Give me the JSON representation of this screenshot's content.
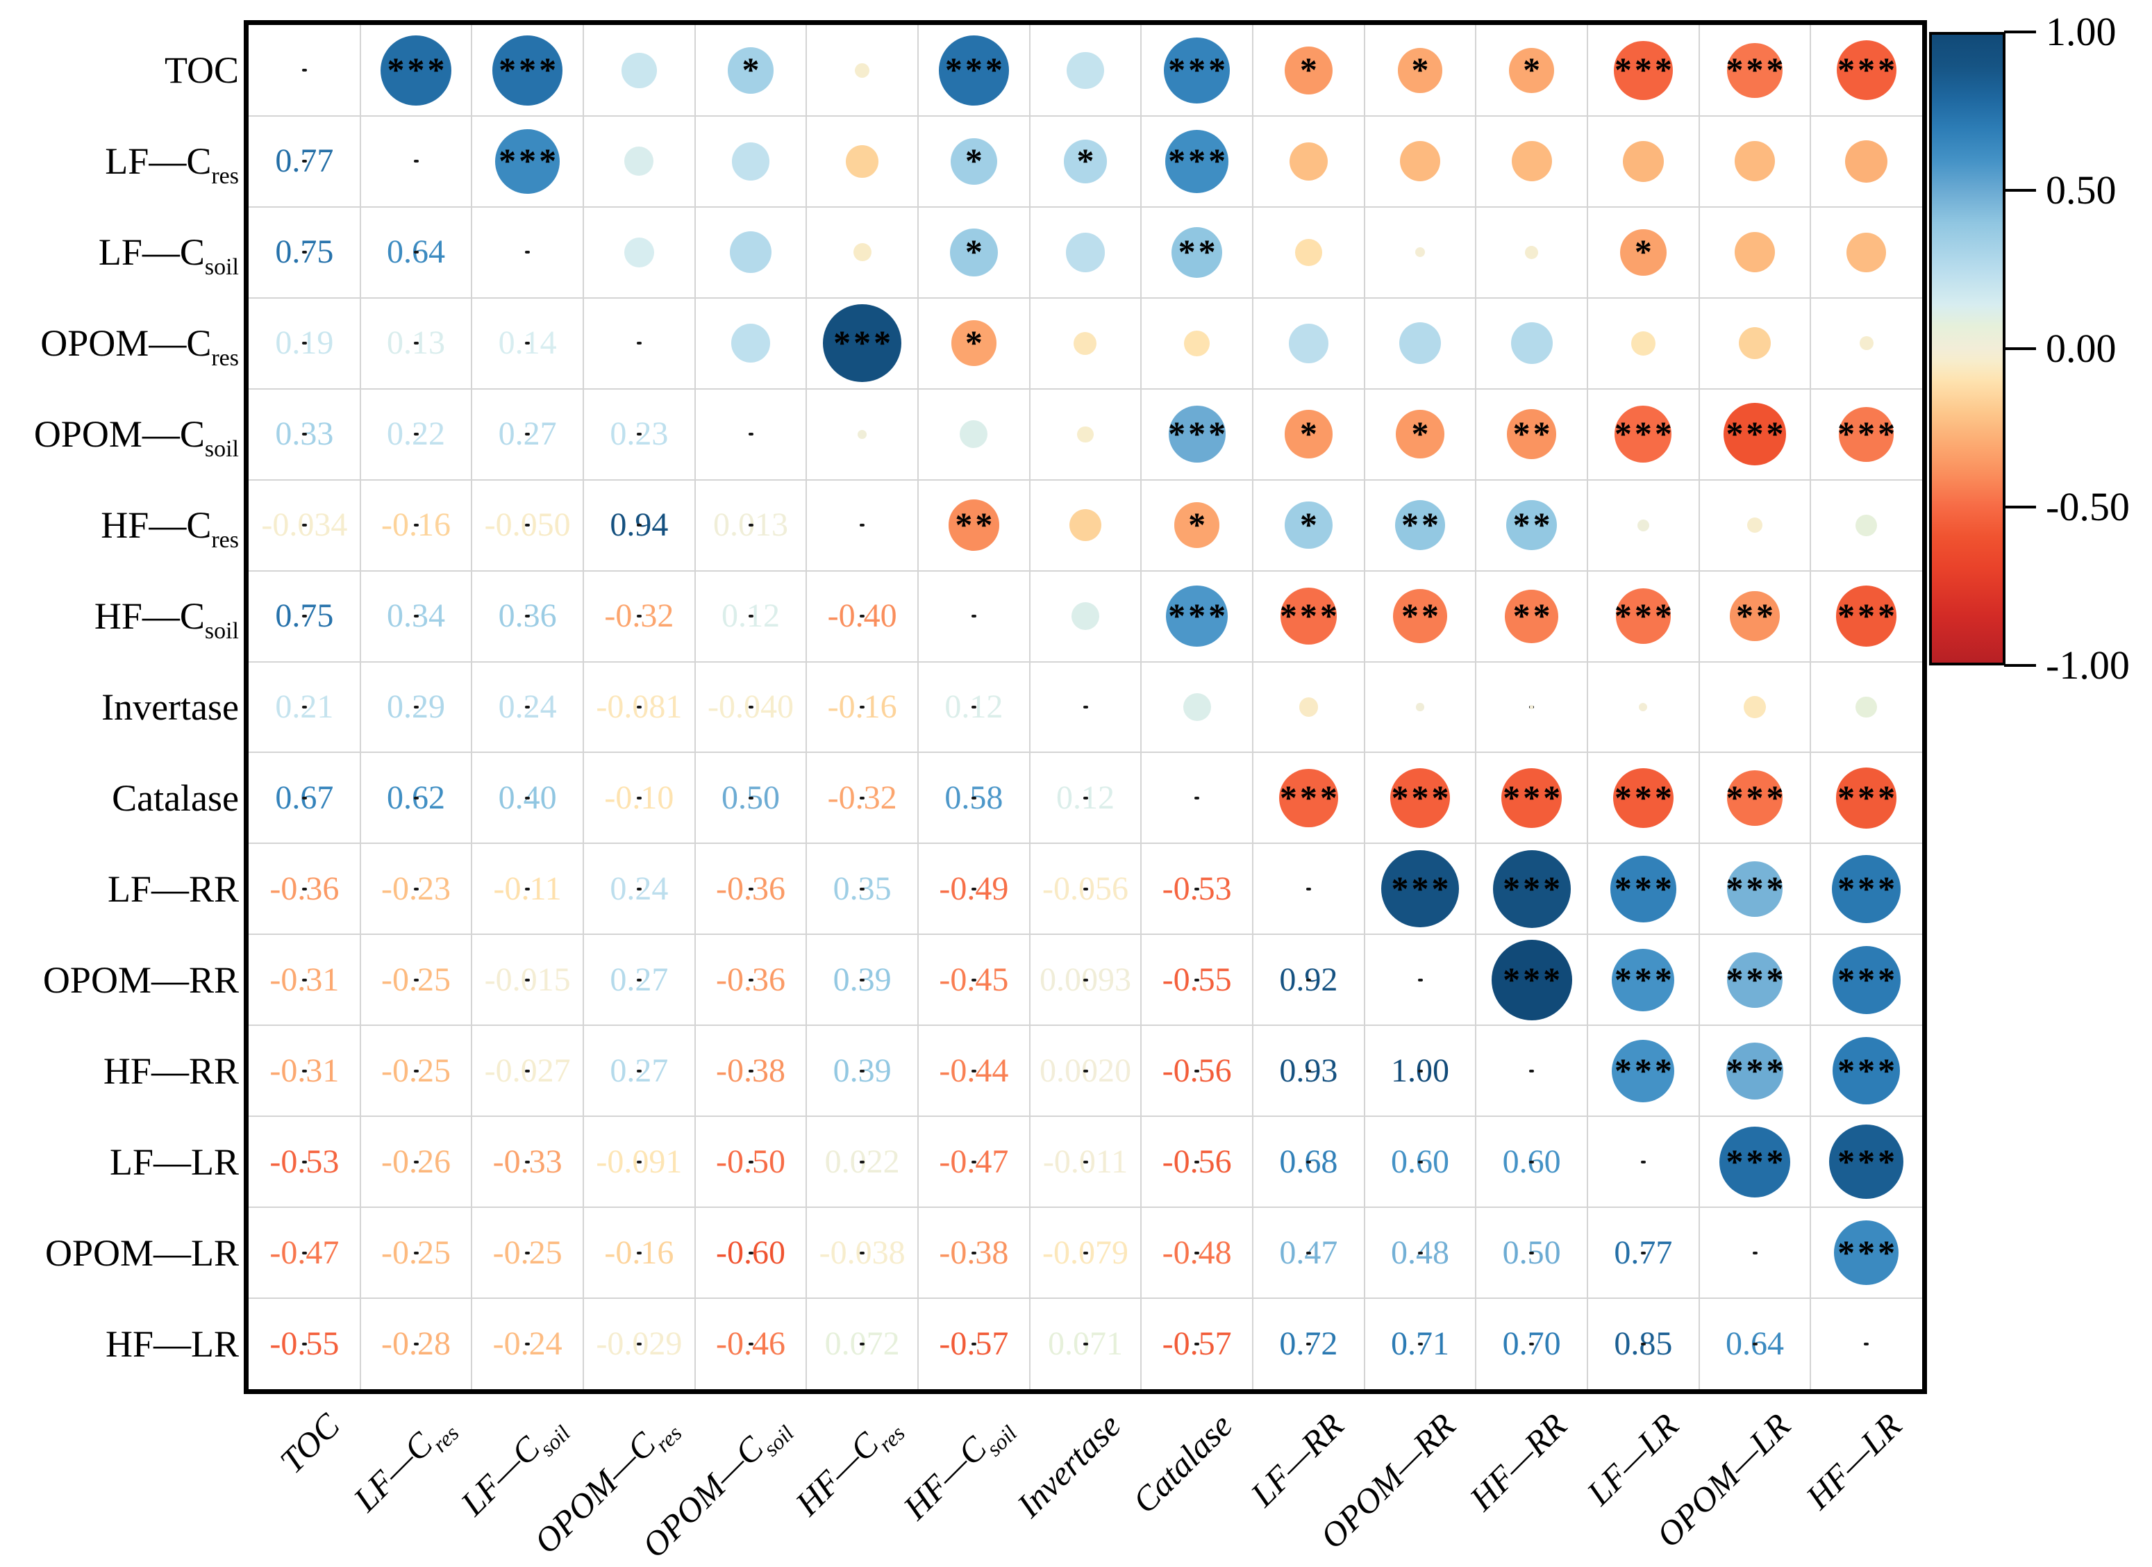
{
  "chart_data": {
    "type": "heatmap",
    "subtype": "correlation-matrix",
    "grid": true,
    "legend_position": "right",
    "variables": [
      {
        "name": "TOC",
        "segments": [
          [
            "TOC",
            false
          ]
        ]
      },
      {
        "name": "LF—C_res",
        "segments": [
          [
            "LF—C",
            false
          ],
          [
            "res",
            true
          ]
        ]
      },
      {
        "name": "LF—C_soil",
        "segments": [
          [
            "LF—C",
            false
          ],
          [
            "soil",
            true
          ]
        ]
      },
      {
        "name": "OPOM—C_res",
        "segments": [
          [
            "OPOM—C",
            false
          ],
          [
            "res",
            true
          ]
        ]
      },
      {
        "name": "OPOM—C_soil",
        "segments": [
          [
            "OPOM—C",
            false
          ],
          [
            "soil",
            true
          ]
        ]
      },
      {
        "name": "HF—C_res",
        "segments": [
          [
            "HF—C",
            false
          ],
          [
            "res",
            true
          ]
        ]
      },
      {
        "name": "HF—C_soil",
        "segments": [
          [
            "HF—C",
            false
          ],
          [
            "soil",
            true
          ]
        ]
      },
      {
        "name": "Invertase",
        "segments": [
          [
            "Invertase",
            false
          ]
        ]
      },
      {
        "name": "Catalase",
        "segments": [
          [
            "Catalase",
            false
          ]
        ]
      },
      {
        "name": "LF—RR",
        "segments": [
          [
            "LF—RR",
            false
          ]
        ]
      },
      {
        "name": "OPOM—RR",
        "segments": [
          [
            "OPOM—RR",
            false
          ]
        ]
      },
      {
        "name": "HF—RR",
        "segments": [
          [
            "HF—RR",
            false
          ]
        ]
      },
      {
        "name": "LF—LR",
        "segments": [
          [
            "LF—LR",
            false
          ]
        ]
      },
      {
        "name": "OPOM—LR",
        "segments": [
          [
            "OPOM—LR",
            false
          ]
        ]
      },
      {
        "name": "HF—LR",
        "segments": [
          [
            "HF—LR",
            false
          ]
        ]
      }
    ],
    "lower_triangle_values": [
      [],
      [
        "0.77"
      ],
      [
        "0.75",
        "0.64"
      ],
      [
        "0.19",
        "0.13",
        "0.14"
      ],
      [
        "0.33",
        "0.22",
        "0.27",
        "0.23"
      ],
      [
        "-0.034",
        "-0.16",
        "-0.050",
        "0.94",
        "0.013"
      ],
      [
        "0.75",
        "0.34",
        "0.36",
        "-0.32",
        "0.12",
        "-0.40"
      ],
      [
        "0.21",
        "0.29",
        "0.24",
        "-0.081",
        "-0.040",
        "-0.16",
        "0.12"
      ],
      [
        "0.67",
        "0.62",
        "0.40",
        "-0.10",
        "0.50",
        "-0.32",
        "0.58",
        "0.12"
      ],
      [
        "-0.36",
        "-0.23",
        "-0.11",
        "0.24",
        "-0.36",
        "0.35",
        "-0.49",
        "-0.056",
        "-0.53"
      ],
      [
        "-0.31",
        "-0.25",
        "-0.015",
        "0.27",
        "-0.36",
        "0.39",
        "-0.45",
        "0.0093",
        "-0.55",
        "0.92"
      ],
      [
        "-0.31",
        "-0.25",
        "-0.027",
        "0.27",
        "-0.38",
        "0.39",
        "-0.44",
        "0.0020",
        "-0.56",
        "0.93",
        "1.00"
      ],
      [
        "-0.53",
        "-0.26",
        "-0.33",
        "-0.091",
        "-0.50",
        "0.022",
        "-0.47",
        "-0.011",
        "-0.56",
        "0.68",
        "0.60",
        "0.60"
      ],
      [
        "-0.47",
        "-0.25",
        "-0.25",
        "-0.16",
        "-0.60",
        "-0.038",
        "-0.38",
        "-0.079",
        "-0.48",
        "0.47",
        "0.48",
        "0.50",
        "0.77"
      ],
      [
        "-0.55",
        "-0.28",
        "-0.24",
        "-0.029",
        "-0.46",
        "0.072",
        "-0.57",
        "0.071",
        "-0.57",
        "0.72",
        "0.71",
        "0.70",
        "0.85",
        "0.64"
      ]
    ],
    "significance": [
      [
        0,
        1,
        "***"
      ],
      [
        0,
        2,
        "***"
      ],
      [
        0,
        4,
        "*"
      ],
      [
        0,
        6,
        "***"
      ],
      [
        0,
        8,
        "***"
      ],
      [
        0,
        9,
        "*"
      ],
      [
        0,
        10,
        "*"
      ],
      [
        0,
        11,
        "*"
      ],
      [
        0,
        12,
        "***"
      ],
      [
        0,
        13,
        "***"
      ],
      [
        0,
        14,
        "***"
      ],
      [
        1,
        2,
        "***"
      ],
      [
        1,
        6,
        "*"
      ],
      [
        1,
        7,
        "*"
      ],
      [
        1,
        8,
        "***"
      ],
      [
        2,
        6,
        "*"
      ],
      [
        2,
        8,
        "**"
      ],
      [
        2,
        12,
        "*"
      ],
      [
        3,
        5,
        "***"
      ],
      [
        3,
        6,
        "*"
      ],
      [
        4,
        8,
        "***"
      ],
      [
        4,
        9,
        "*"
      ],
      [
        4,
        10,
        "*"
      ],
      [
        4,
        11,
        "**"
      ],
      [
        4,
        12,
        "***"
      ],
      [
        4,
        13,
        "***"
      ],
      [
        4,
        14,
        "***"
      ],
      [
        5,
        6,
        "**"
      ],
      [
        5,
        8,
        "*"
      ],
      [
        5,
        9,
        "*"
      ],
      [
        5,
        10,
        "**"
      ],
      [
        5,
        11,
        "**"
      ],
      [
        6,
        8,
        "***"
      ],
      [
        6,
        9,
        "***"
      ],
      [
        6,
        10,
        "**"
      ],
      [
        6,
        11,
        "**"
      ],
      [
        6,
        12,
        "***"
      ],
      [
        6,
        13,
        "**"
      ],
      [
        6,
        14,
        "***"
      ],
      [
        8,
        9,
        "***"
      ],
      [
        8,
        10,
        "***"
      ],
      [
        8,
        11,
        "***"
      ],
      [
        8,
        12,
        "***"
      ],
      [
        8,
        13,
        "***"
      ],
      [
        8,
        14,
        "***"
      ],
      [
        9,
        10,
        "***"
      ],
      [
        9,
        11,
        "***"
      ],
      [
        9,
        12,
        "***"
      ],
      [
        9,
        13,
        "***"
      ],
      [
        9,
        14,
        "***"
      ],
      [
        10,
        11,
        "***"
      ],
      [
        10,
        12,
        "***"
      ],
      [
        10,
        13,
        "***"
      ],
      [
        10,
        14,
        "***"
      ],
      [
        11,
        12,
        "***"
      ],
      [
        11,
        13,
        "***"
      ],
      [
        11,
        14,
        "***"
      ],
      [
        12,
        13,
        "***"
      ],
      [
        12,
        14,
        "***"
      ],
      [
        13,
        14,
        "***"
      ]
    ],
    "colorbar": {
      "tick_labels": [
        "1.00",
        "0.50",
        "0.00",
        "-0.50",
        "-1.00"
      ],
      "tick_values": [
        1.0,
        0.5,
        0.0,
        -0.5,
        -1.0
      ],
      "range": [
        -1,
        1
      ]
    },
    "colormap_stops": [
      [
        -1.0,
        "#b72025"
      ],
      [
        -0.85,
        "#d32b26"
      ],
      [
        -0.7,
        "#e9422a"
      ],
      [
        -0.6,
        "#f05330"
      ],
      [
        -0.5,
        "#f76c46"
      ],
      [
        -0.4,
        "#fa8e5c"
      ],
      [
        -0.3,
        "#fcab72"
      ],
      [
        -0.2,
        "#fdc88c"
      ],
      [
        -0.1,
        "#fee3b0"
      ],
      [
        -0.04,
        "#f7edcc"
      ],
      [
        0.0,
        "#f2edd8"
      ],
      [
        0.07,
        "#e6f0da"
      ],
      [
        0.14,
        "#d7edf0"
      ],
      [
        0.25,
        "#b9dded"
      ],
      [
        0.4,
        "#90c6e1"
      ],
      [
        0.5,
        "#6cabd3"
      ],
      [
        0.6,
        "#4492c6"
      ],
      [
        0.7,
        "#2d7db6"
      ],
      [
        0.8,
        "#1e679f"
      ],
      [
        0.9,
        "#165484"
      ],
      [
        1.0,
        "#114a78"
      ]
    ]
  }
}
